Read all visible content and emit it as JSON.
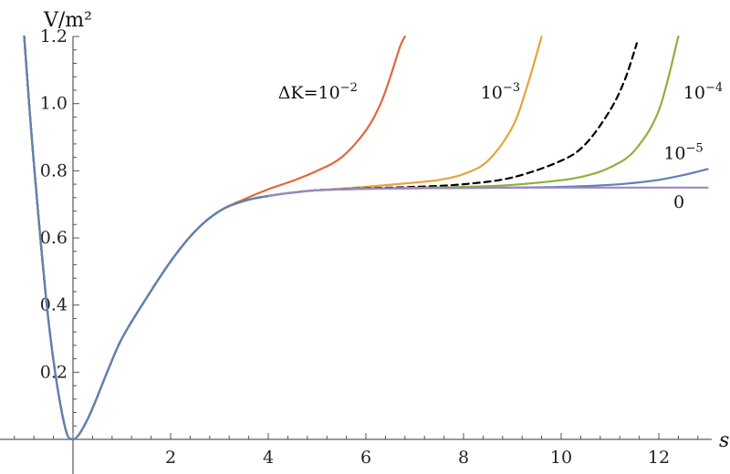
{
  "chart_data": {
    "type": "line",
    "title": "",
    "xlabel": "s",
    "ylabel": "V/m²",
    "xlim": [
      -2.0,
      13.3
    ],
    "ylim": [
      0.0,
      1.2
    ],
    "grid": false,
    "legend": "none",
    "x_ticks": [
      2,
      4,
      6,
      8,
      10,
      12
    ],
    "y_ticks": [
      0.2,
      0.4,
      0.6,
      0.8,
      1.0,
      1.2
    ],
    "x_tick_labels": [
      "2",
      "4",
      "6",
      "8",
      "10",
      "12"
    ],
    "y_tick_labels": [
      "0.2",
      "0.4",
      "0.6",
      "0.8",
      "1.0",
      "1.2"
    ],
    "series": [
      {
        "color": "#e0693a",
        "dashed": false,
        "x": [
          -1.0,
          -0.8,
          -0.5,
          -0.2,
          0,
          0.3,
          0.7,
          1.0,
          1.5,
          2.0,
          2.5,
          3.0,
          3.5,
          4.0,
          4.5,
          5.0,
          5.5,
          6.0,
          6.3,
          6.5,
          6.7,
          6.8
        ],
        "y": [
          1.2,
          0.82,
          0.35,
          0.06,
          0,
          0.06,
          0.2,
          0.3,
          0.42,
          0.53,
          0.62,
          0.68,
          0.715,
          0.745,
          0.77,
          0.8,
          0.84,
          0.92,
          1.0,
          1.08,
          1.17,
          1.2
        ]
      },
      {
        "color": "#e5a43a",
        "dashed": false,
        "x": [
          -1.0,
          -0.8,
          -0.5,
          -0.2,
          0,
          0.3,
          0.7,
          1.0,
          1.5,
          2.0,
          2.5,
          3.0,
          3.5,
          4.0,
          4.5,
          5.0,
          6.0,
          7.0,
          7.5,
          8.0,
          8.5,
          9.0,
          9.3,
          9.6
        ],
        "y": [
          1.2,
          0.82,
          0.35,
          0.06,
          0,
          0.06,
          0.2,
          0.3,
          0.42,
          0.53,
          0.62,
          0.68,
          0.71,
          0.725,
          0.735,
          0.742,
          0.752,
          0.765,
          0.773,
          0.79,
          0.83,
          0.93,
          1.05,
          1.2
        ]
      },
      {
        "color": "#000000",
        "dashed": true,
        "x": [
          -1.0,
          -0.8,
          -0.5,
          -0.2,
          0,
          0.3,
          0.7,
          1.0,
          1.5,
          2.0,
          2.5,
          3.0,
          3.5,
          4.0,
          4.5,
          5.0,
          6.0,
          7.0,
          8.0,
          9.0,
          10.0,
          10.5,
          11.0,
          11.3,
          11.55
        ],
        "y": [
          1.2,
          0.82,
          0.35,
          0.06,
          0,
          0.06,
          0.2,
          0.3,
          0.42,
          0.53,
          0.62,
          0.68,
          0.71,
          0.725,
          0.735,
          0.742,
          0.748,
          0.752,
          0.76,
          0.78,
          0.83,
          0.88,
          0.98,
          1.07,
          1.18
        ]
      },
      {
        "color": "#8db03c",
        "dashed": false,
        "x": [
          -1.0,
          -0.8,
          -0.5,
          -0.2,
          0,
          0.3,
          0.7,
          1.0,
          1.5,
          2.0,
          2.5,
          3.0,
          3.5,
          4.0,
          4.5,
          5.0,
          6.0,
          7.0,
          8.0,
          9.0,
          10.0,
          10.5,
          11.0,
          11.5,
          12.0,
          12.4
        ],
        "y": [
          1.2,
          0.82,
          0.35,
          0.06,
          0,
          0.06,
          0.2,
          0.3,
          0.42,
          0.53,
          0.62,
          0.68,
          0.71,
          0.725,
          0.735,
          0.742,
          0.747,
          0.749,
          0.752,
          0.758,
          0.772,
          0.785,
          0.81,
          0.86,
          0.98,
          1.2
        ]
      },
      {
        "color": "#5d80b8",
        "dashed": false,
        "x": [
          -1.0,
          -0.8,
          -0.5,
          -0.2,
          0,
          0.3,
          0.7,
          1.0,
          1.5,
          2.0,
          2.5,
          3.0,
          3.5,
          4.0,
          4.5,
          5.0,
          6.0,
          7.0,
          8.0,
          9.0,
          10.0,
          11.0,
          11.5,
          12.0,
          12.5,
          13.0
        ],
        "y": [
          1.2,
          0.82,
          0.35,
          0.06,
          0,
          0.06,
          0.2,
          0.3,
          0.42,
          0.53,
          0.62,
          0.68,
          0.71,
          0.725,
          0.735,
          0.742,
          0.746,
          0.748,
          0.749,
          0.75,
          0.752,
          0.758,
          0.764,
          0.773,
          0.787,
          0.805
        ]
      },
      {
        "color": "#9b87c4",
        "dashed": false,
        "x": [
          4.0,
          4.5,
          5.0,
          6.0,
          7.0,
          8.0,
          9.0,
          10.0,
          11.0,
          12.0,
          13.0
        ],
        "y": [
          0.725,
          0.735,
          0.742,
          0.746,
          0.748,
          0.749,
          0.75,
          0.75,
          0.75,
          0.75,
          0.75
        ]
      }
    ],
    "annotations": [
      {
        "text": "ΔK=10",
        "sup": "−2",
        "x": 4.2,
        "y": 1.015
      },
      {
        "text": "10",
        "sup": "−3",
        "x": 8.35,
        "y": 1.015
      },
      {
        "text": "10",
        "sup": "−4",
        "x": 12.5,
        "y": 1.015
      },
      {
        "text": "10",
        "sup": "−5",
        "x": 12.1,
        "y": 0.835
      },
      {
        "text": "0",
        "sup": "",
        "x": 12.3,
        "y": 0.69
      }
    ]
  }
}
